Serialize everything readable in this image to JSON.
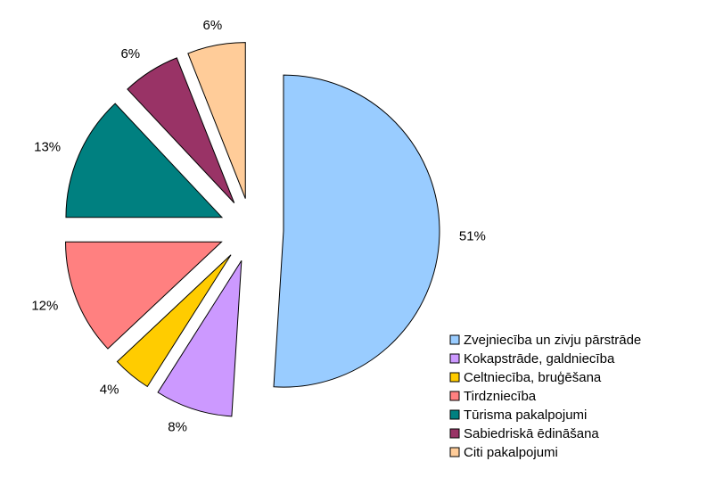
{
  "chart_data": {
    "type": "pie",
    "categories": [
      "Zvejniecība un zivju pārstrāde",
      "Kokapstrāde, galdniecība",
      "Celtniecība, bruģēšana",
      "Tirdzniecība",
      "Tūrisma pakalpojumi",
      "Sabiedriskā ēdināšana",
      "Citi pakalpojumi"
    ],
    "values": [
      51,
      8,
      4,
      12,
      13,
      6,
      6
    ],
    "value_labels": [
      "51%",
      "8%",
      "4%",
      "12%",
      "13%",
      "6%",
      "6%"
    ],
    "colors": [
      "#99ccff",
      "#cc99ff",
      "#ffcc00",
      "#ff8080",
      "#008080",
      "#993366",
      "#ffcc99"
    ],
    "legend": "right-bottom"
  }
}
